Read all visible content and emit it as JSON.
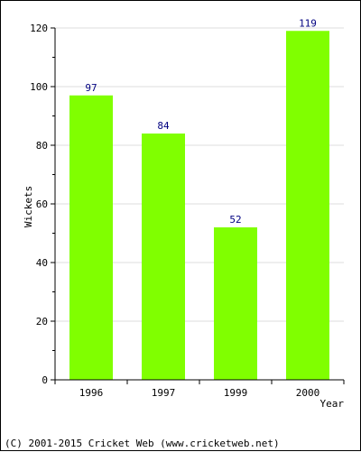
{
  "chart_data": {
    "type": "bar",
    "categories": [
      "1996",
      "1997",
      "1999",
      "2000"
    ],
    "values": [
      97,
      84,
      52,
      119
    ],
    "xlabel": "Year",
    "ylabel": "Wickets",
    "ylim": [
      0,
      120
    ],
    "yticks": [
      0,
      20,
      40,
      60,
      80,
      100,
      120
    ],
    "grid": true,
    "colors": {
      "bar": "#80ff00",
      "data_label": "#000080",
      "grid": "#dddddd"
    }
  },
  "footer": {
    "text": "(C) 2001-2015 Cricket Web (www.cricketweb.net)"
  }
}
